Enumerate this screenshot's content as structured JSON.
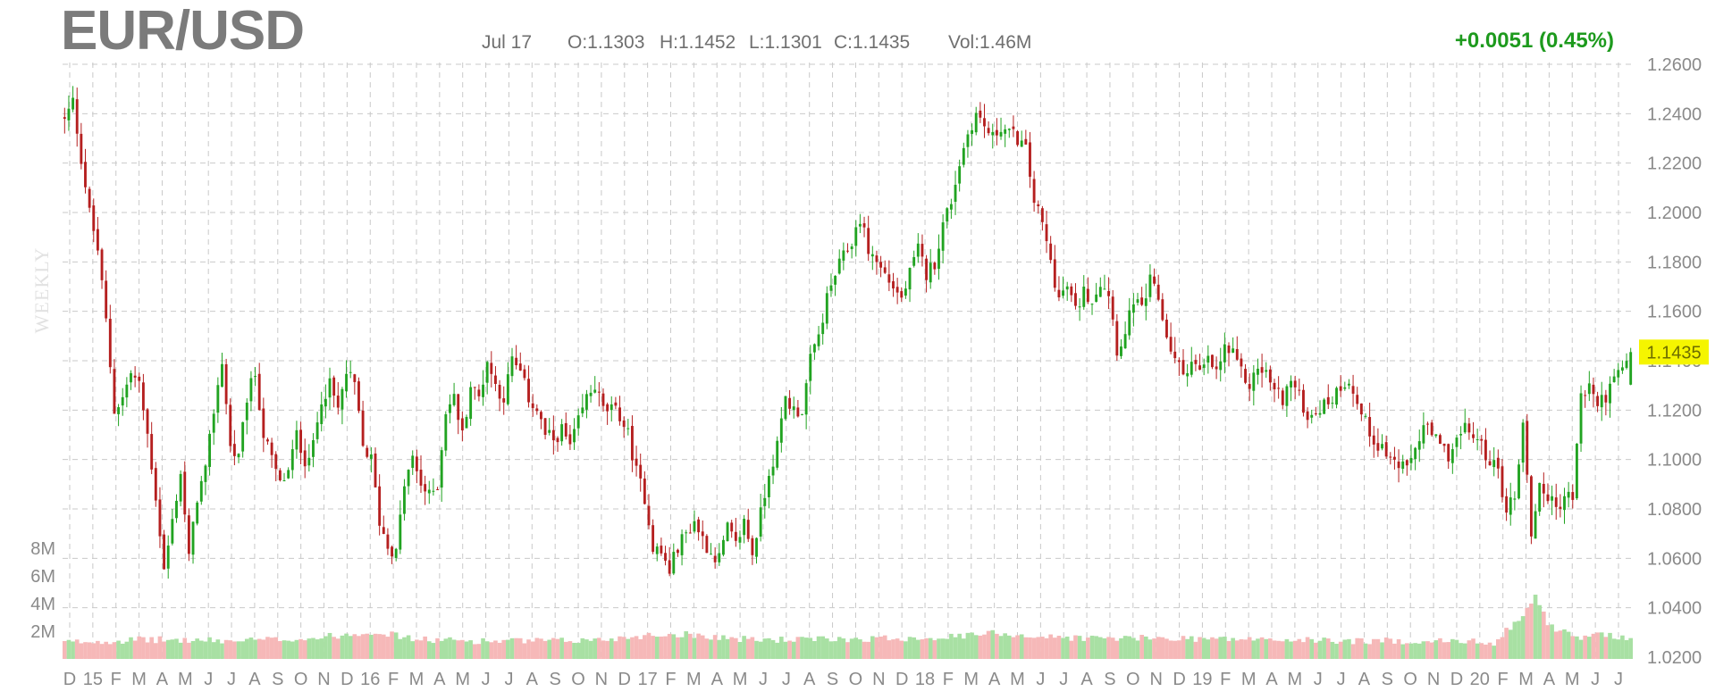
{
  "header": {
    "symbol": "EUR/USD",
    "date": "Jul 17",
    "open": "O:1.1303",
    "high": "H:1.1452",
    "low": "L:1.1301",
    "close": "C:1.1435",
    "volume": "Vol:1.46M",
    "change": "+0.0051 (0.45%)",
    "period": "WEEKLY"
  },
  "colors": {
    "up": "#21a321",
    "down": "#b51f1f",
    "vol_up": "#a8e0a3",
    "vol_down": "#f6b8b8",
    "grid": "#c9c9c9",
    "current_badge": "#f5f500"
  },
  "chart_data": {
    "type": "candlestick",
    "title": "EUR/USD",
    "period": "WEEKLY",
    "ylim": [
      1.02,
      1.26
    ],
    "y_ticks": [
      "1.2600",
      "1.2400",
      "1.2200",
      "1.2000",
      "1.1800",
      "1.1600",
      "1.1400",
      "1.1200",
      "1.1000",
      "1.0800",
      "1.0600",
      "1.0400",
      "1.0200"
    ],
    "y_tick_values": [
      1.26,
      1.24,
      1.22,
      1.2,
      1.18,
      1.16,
      1.14,
      1.12,
      1.1,
      1.08,
      1.06,
      1.04,
      1.02
    ],
    "current_price_label": "1.1435",
    "current_price": 1.1435,
    "volume_ticks": [
      {
        "label": "8M",
        "value": 8
      },
      {
        "label": "6M",
        "value": 6
      },
      {
        "label": "4M",
        "value": 4
      },
      {
        "label": "2M",
        "value": 2
      }
    ],
    "x_tick_labels": [
      "D",
      "15",
      "F",
      "M",
      "A",
      "M",
      "J",
      "J",
      "A",
      "S",
      "O",
      "N",
      "D",
      "16",
      "F",
      "M",
      "A",
      "M",
      "J",
      "J",
      "A",
      "S",
      "O",
      "N",
      "D",
      "17",
      "F",
      "M",
      "A",
      "M",
      "J",
      "J",
      "A",
      "S",
      "O",
      "N",
      "D",
      "18",
      "F",
      "M",
      "A",
      "M",
      "J",
      "J",
      "A",
      "S",
      "O",
      "N",
      "D",
      "19",
      "F",
      "M",
      "A",
      "M",
      "J",
      "J",
      "A",
      "S",
      "O",
      "N",
      "D",
      "20",
      "F",
      "M",
      "A",
      "M",
      "J",
      "J"
    ],
    "close_path": [
      [
        0,
        1.237
      ],
      [
        2,
        1.245
      ],
      [
        4,
        1.222
      ],
      [
        6,
        1.2
      ],
      [
        8,
        1.185
      ],
      [
        10,
        1.156
      ],
      [
        12,
        1.12
      ],
      [
        14,
        1.125
      ],
      [
        16,
        1.135
      ],
      [
        18,
        1.13
      ],
      [
        20,
        1.11
      ],
      [
        22,
        1.085
      ],
      [
        24,
        1.055
      ],
      [
        26,
        1.075
      ],
      [
        28,
        1.095
      ],
      [
        30,
        1.06
      ],
      [
        32,
        1.085
      ],
      [
        34,
        1.095
      ],
      [
        36,
        1.12
      ],
      [
        38,
        1.14
      ],
      [
        40,
        1.105
      ],
      [
        42,
        1.1
      ],
      [
        44,
        1.125
      ],
      [
        46,
        1.135
      ],
      [
        48,
        1.11
      ],
      [
        50,
        1.1
      ],
      [
        52,
        1.09
      ],
      [
        54,
        1.095
      ],
      [
        56,
        1.11
      ],
      [
        58,
        1.1
      ],
      [
        60,
        1.105
      ],
      [
        62,
        1.125
      ],
      [
        64,
        1.13
      ],
      [
        66,
        1.12
      ],
      [
        68,
        1.135
      ],
      [
        70,
        1.13
      ],
      [
        72,
        1.105
      ],
      [
        74,
        1.1
      ],
      [
        76,
        1.075
      ],
      [
        78,
        1.065
      ],
      [
        80,
        1.062
      ],
      [
        82,
        1.09
      ],
      [
        84,
        1.1
      ],
      [
        86,
        1.09
      ],
      [
        88,
        1.085
      ],
      [
        90,
        1.09
      ],
      [
        92,
        1.12
      ],
      [
        94,
        1.125
      ],
      [
        96,
        1.11
      ],
      [
        98,
        1.13
      ],
      [
        100,
        1.125
      ],
      [
        102,
        1.14
      ],
      [
        104,
        1.13
      ],
      [
        106,
        1.125
      ],
      [
        108,
        1.14
      ],
      [
        110,
        1.135
      ],
      [
        112,
        1.125
      ],
      [
        114,
        1.12
      ],
      [
        116,
        1.11
      ],
      [
        118,
        1.108
      ],
      [
        120,
        1.112
      ],
      [
        122,
        1.105
      ],
      [
        124,
        1.115
      ],
      [
        126,
        1.125
      ],
      [
        128,
        1.13
      ],
      [
        130,
        1.12
      ],
      [
        132,
        1.12
      ],
      [
        134,
        1.118
      ],
      [
        136,
        1.11
      ],
      [
        138,
        1.095
      ],
      [
        140,
        1.085
      ],
      [
        142,
        1.065
      ],
      [
        144,
        1.062
      ],
      [
        146,
        1.055
      ],
      [
        148,
        1.065
      ],
      [
        150,
        1.07
      ],
      [
        152,
        1.075
      ],
      [
        154,
        1.068
      ],
      [
        156,
        1.062
      ],
      [
        158,
        1.06
      ],
      [
        160,
        1.072
      ],
      [
        162,
        1.065
      ],
      [
        164,
        1.075
      ],
      [
        166,
        1.062
      ],
      [
        168,
        1.078
      ],
      [
        170,
        1.095
      ],
      [
        172,
        1.105
      ],
      [
        174,
        1.125
      ],
      [
        176,
        1.12
      ],
      [
        178,
        1.12
      ],
      [
        180,
        1.14
      ],
      [
        182,
        1.15
      ],
      [
        184,
        1.165
      ],
      [
        186,
        1.175
      ],
      [
        188,
        1.182
      ],
      [
        190,
        1.188
      ],
      [
        192,
        1.198
      ],
      [
        194,
        1.185
      ],
      [
        196,
        1.18
      ],
      [
        198,
        1.175
      ],
      [
        200,
        1.17
      ],
      [
        202,
        1.165
      ],
      [
        204,
        1.175
      ],
      [
        206,
        1.185
      ],
      [
        208,
        1.175
      ],
      [
        210,
        1.18
      ],
      [
        212,
        1.195
      ],
      [
        214,
        1.205
      ],
      [
        216,
        1.22
      ],
      [
        218,
        1.232
      ],
      [
        220,
        1.24
      ],
      [
        222,
        1.235
      ],
      [
        224,
        1.23
      ],
      [
        226,
        1.235
      ],
      [
        228,
        1.232
      ],
      [
        230,
        1.23
      ],
      [
        232,
        1.225
      ],
      [
        234,
        1.205
      ],
      [
        236,
        1.195
      ],
      [
        238,
        1.18
      ],
      [
        240,
        1.165
      ],
      [
        242,
        1.17
      ],
      [
        244,
        1.16
      ],
      [
        246,
        1.168
      ],
      [
        248,
        1.165
      ],
      [
        250,
        1.172
      ],
      [
        252,
        1.168
      ],
      [
        254,
        1.145
      ],
      [
        256,
        1.15
      ],
      [
        258,
        1.165
      ],
      [
        260,
        1.16
      ],
      [
        262,
        1.172
      ],
      [
        264,
        1.165
      ],
      [
        266,
        1.15
      ],
      [
        268,
        1.14
      ],
      [
        270,
        1.135
      ],
      [
        272,
        1.14
      ],
      [
        274,
        1.135
      ],
      [
        276,
        1.14
      ],
      [
        278,
        1.135
      ],
      [
        280,
        1.145
      ],
      [
        282,
        1.142
      ],
      [
        284,
        1.135
      ],
      [
        286,
        1.13
      ],
      [
        288,
        1.137
      ],
      [
        290,
        1.135
      ],
      [
        292,
        1.128
      ],
      [
        294,
        1.125
      ],
      [
        296,
        1.132
      ],
      [
        298,
        1.125
      ],
      [
        300,
        1.118
      ],
      [
        302,
        1.12
      ],
      [
        304,
        1.122
      ],
      [
        306,
        1.125
      ],
      [
        308,
        1.13
      ],
      [
        310,
        1.133
      ],
      [
        312,
        1.122
      ],
      [
        314,
        1.115
      ],
      [
        316,
        1.108
      ],
      [
        318,
        1.105
      ],
      [
        320,
        1.1
      ],
      [
        322,
        1.098
      ],
      [
        324,
        1.095
      ],
      [
        326,
        1.105
      ],
      [
        328,
        1.113
      ],
      [
        330,
        1.11
      ],
      [
        332,
        1.105
      ],
      [
        334,
        1.102
      ],
      [
        336,
        1.108
      ],
      [
        338,
        1.112
      ],
      [
        340,
        1.11
      ],
      [
        342,
        1.105
      ],
      [
        344,
        1.1
      ],
      [
        346,
        1.095
      ],
      [
        348,
        1.08
      ],
      [
        350,
        1.085
      ],
      [
        352,
        1.115
      ],
      [
        354,
        1.07
      ],
      [
        356,
        1.09
      ],
      [
        358,
        1.085
      ],
      [
        360,
        1.08
      ],
      [
        362,
        1.085
      ],
      [
        364,
        1.085
      ],
      [
        366,
        1.125
      ],
      [
        368,
        1.13
      ],
      [
        370,
        1.122
      ],
      [
        372,
        1.126
      ],
      [
        374,
        1.132
      ],
      [
        376,
        1.136
      ],
      [
        378,
        1.1435
      ]
    ],
    "volume_path": [
      [
        0,
        1.2
      ],
      [
        20,
        1.4
      ],
      [
        40,
        1.3
      ],
      [
        60,
        1.5
      ],
      [
        75,
        2.0
      ],
      [
        85,
        1.4
      ],
      [
        100,
        1.3
      ],
      [
        120,
        1.3
      ],
      [
        130,
        1.4
      ],
      [
        140,
        1.7
      ],
      [
        150,
        1.8
      ],
      [
        165,
        1.4
      ],
      [
        180,
        1.4
      ],
      [
        200,
        1.5
      ],
      [
        215,
        1.6
      ],
      [
        225,
        1.9
      ],
      [
        235,
        1.6
      ],
      [
        250,
        1.5
      ],
      [
        270,
        1.5
      ],
      [
        290,
        1.4
      ],
      [
        310,
        1.3
      ],
      [
        330,
        1.3
      ],
      [
        345,
        1.2
      ],
      [
        352,
        3.2
      ],
      [
        355,
        4.6
      ],
      [
        358,
        2.5
      ],
      [
        365,
        1.5
      ],
      [
        372,
        1.8
      ],
      [
        378,
        1.5
      ]
    ]
  }
}
